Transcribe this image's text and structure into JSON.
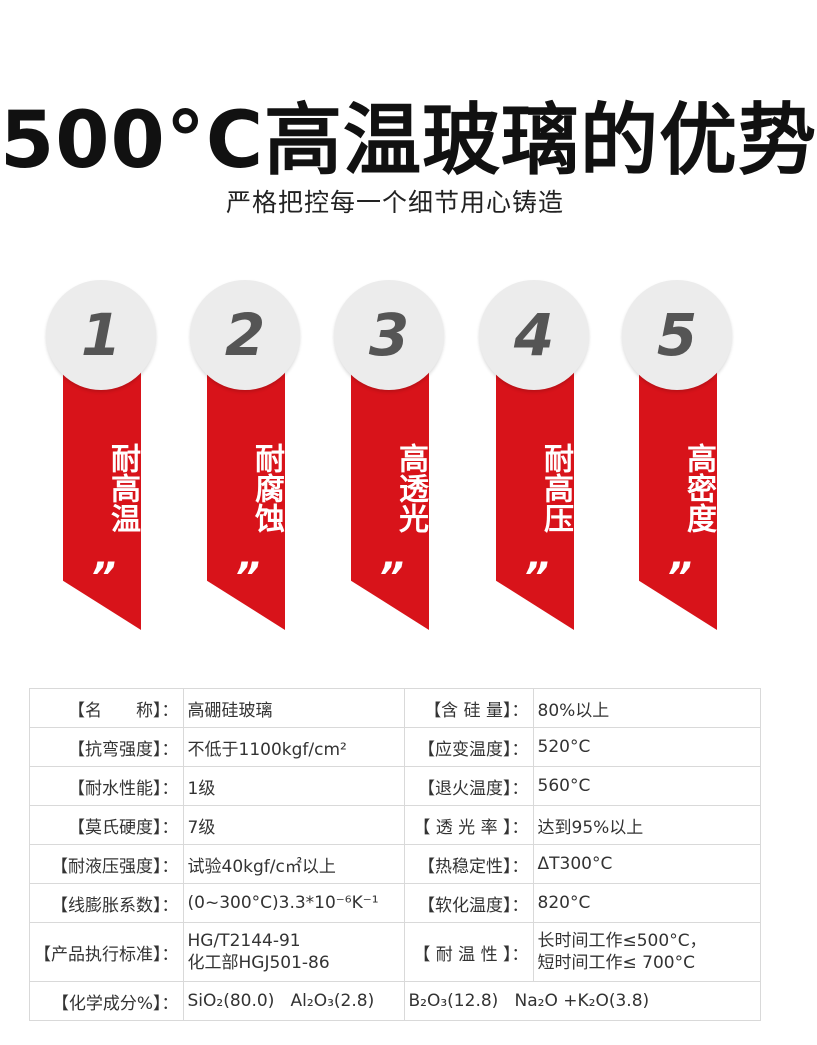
{
  "title": "500°C高温玻璃的优势",
  "subtitle": "严格把控每一个细节用心铸造",
  "features": [
    {
      "number": "1",
      "label": "耐高温",
      "quote": "”"
    },
    {
      "number": "2",
      "label": "耐腐蚀",
      "quote": "”"
    },
    {
      "number": "3",
      "label": "高透光",
      "quote": "”"
    },
    {
      "number": "4",
      "label": "耐高压",
      "quote": "”"
    },
    {
      "number": "5",
      "label": "高密度",
      "quote": "”"
    }
  ],
  "specs": {
    "r1": {
      "k1": "【名　　称】：",
      "v1": "高硼硅玻璃",
      "k2": "【含 硅 量】：",
      "v2": "80%以上"
    },
    "r2": {
      "k1": "【抗弯强度】：",
      "v1": "不低于1100kgf/cm²",
      "k2": "【应变温度】：",
      "v2": "520°C"
    },
    "r3": {
      "k1": "【耐水性能】：",
      "v1": "1级",
      "k2": "【退火温度】：",
      "v2": "560°C"
    },
    "r4": {
      "k1": "【莫氏硬度】：",
      "v1": "7级",
      "k2": "【 透 光 率 】：",
      "v2": "达到95%以上"
    },
    "r5": {
      "k1": "【耐液压强度】：",
      "v1": "试验40kgf/c㎡以上",
      "k2": "【热稳定性】：",
      "v2": "ΔT300°C"
    },
    "r6": {
      "k1": "【线膨胀系数】：",
      "v1": "(0~300°C)3.3*10⁻⁶K⁻¹",
      "k2": "【软化温度】：",
      "v2": "820°C"
    },
    "r7": {
      "k1": "【产品执行标准】：",
      "v1_line1": "HG/T2144-91",
      "v1_line2": "化工部HGJ501-86",
      "k2": "【 耐 温 性 】：",
      "v2_line1": "长时间工作≤500°C，",
      "v2_line2": "短时间工作≤ 700°C"
    },
    "r8": {
      "k1": "【化学成分%】：",
      "sio2": "SiO₂(80.0)",
      "al2o3": "Al₂O₃(2.8)",
      "b2o3": "B₂O₃(12.8)",
      "na2o_k2o": "Na₂O +K₂O(3.8)"
    }
  },
  "colors": {
    "accent_red": "#d8131a",
    "circle_grey": "#ececec",
    "number_grey": "#555555"
  }
}
